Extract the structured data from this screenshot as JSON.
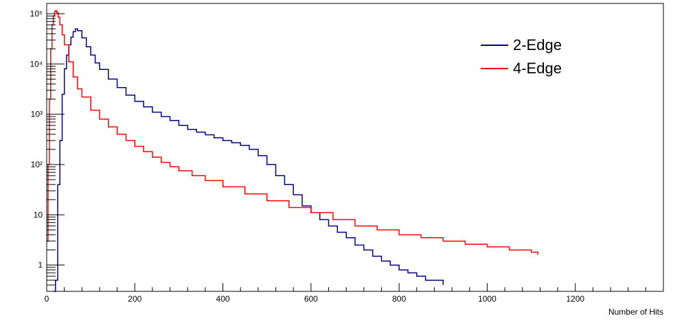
{
  "chart_data": {
    "type": "line",
    "title": "",
    "xlabel": "Number of Hits",
    "ylabel": "",
    "xlim": [
      0,
      1400
    ],
    "ylim": [
      0.3,
      160000
    ],
    "yscale": "log",
    "grid": false,
    "legend_position": "top-right",
    "x_ticks": [
      0,
      200,
      400,
      600,
      800,
      1000,
      1200
    ],
    "x_tick_labels": [
      "0",
      "200",
      "400",
      "600",
      "800",
      "1000",
      "1200"
    ],
    "y_ticks": [
      1,
      10,
      100,
      1000,
      10000,
      100000
    ],
    "y_tick_labels": [
      "1",
      "10",
      "10²",
      "10³",
      "10⁴",
      "10⁵"
    ],
    "series": [
      {
        "name": "2-Edge",
        "color": "#00008b",
        "x": [
          15,
          20,
          25,
          30,
          35,
          40,
          45,
          50,
          55,
          60,
          65,
          70,
          80,
          90,
          100,
          110,
          120,
          140,
          160,
          180,
          200,
          220,
          240,
          260,
          280,
          300,
          320,
          340,
          360,
          380,
          400,
          420,
          440,
          460,
          480,
          500,
          520,
          540,
          560,
          580,
          600,
          620,
          640,
          660,
          680,
          700,
          720,
          740,
          760,
          780,
          800,
          820,
          840,
          860,
          880,
          900
        ],
        "y": [
          0.3,
          0.5,
          40,
          300,
          2500,
          8000,
          15000,
          24000,
          34000,
          44000,
          50000,
          46000,
          33000,
          22000,
          15000,
          10500,
          7800,
          5000,
          3400,
          2400,
          1800,
          1400,
          1100,
          900,
          750,
          600,
          500,
          440,
          390,
          340,
          300,
          270,
          240,
          200,
          150,
          100,
          60,
          40,
          25,
          15,
          11,
          8,
          6,
          4.5,
          3.5,
          2.5,
          2,
          1.5,
          1.2,
          1,
          0.8,
          0.7,
          0.6,
          0.5,
          0.5,
          0.4
        ]
      },
      {
        "name": "4-Edge",
        "color": "#ff0000",
        "x": [
          0,
          3,
          6,
          9,
          12,
          15,
          18,
          20,
          23,
          26,
          30,
          35,
          40,
          50,
          60,
          70,
          80,
          100,
          120,
          140,
          160,
          180,
          200,
          220,
          240,
          260,
          280,
          300,
          330,
          360,
          400,
          450,
          500,
          550,
          600,
          650,
          700,
          750,
          800,
          850,
          900,
          950,
          1000,
          1050,
          1100,
          1115
        ],
        "y": [
          3,
          100,
          2000,
          20000,
          60000,
          90000,
          110000,
          115000,
          105000,
          85000,
          60000,
          38000,
          24000,
          11000,
          5500,
          3200,
          2200,
          1200,
          800,
          560,
          400,
          300,
          230,
          180,
          140,
          110,
          90,
          75,
          60,
          48,
          36,
          26,
          19,
          14,
          11,
          8,
          6,
          5,
          4,
          3.5,
          3,
          2.6,
          2.3,
          2,
          1.8,
          1.6
        ]
      }
    ]
  }
}
